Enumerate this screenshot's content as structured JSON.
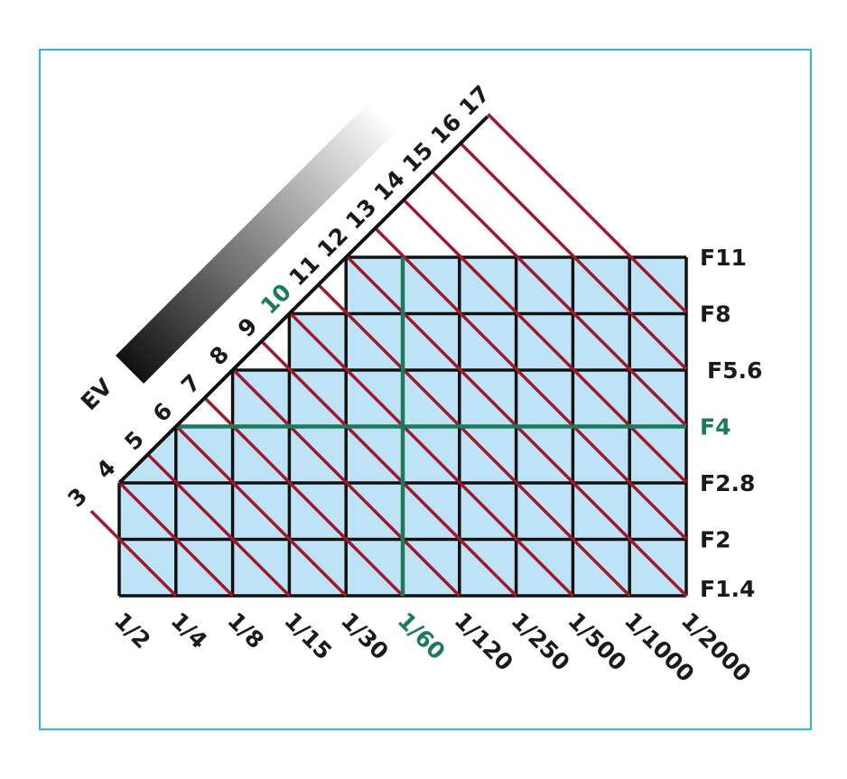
{
  "ev_label": "EV",
  "ev_values": [
    3,
    4,
    5,
    6,
    7,
    8,
    9,
    10,
    11,
    12,
    13,
    14,
    15,
    16,
    17
  ],
  "apertures": [
    "F11",
    "F8",
    "F5.6",
    "F4",
    "F2.8",
    "F2",
    "F1.4"
  ],
  "shutter_speeds": [
    "1/2",
    "1/4",
    "1/8",
    "1/15",
    "1/30",
    "1/60",
    "1/120",
    "1/250",
    "1/500",
    "1/1000",
    "1/2000"
  ]
}
